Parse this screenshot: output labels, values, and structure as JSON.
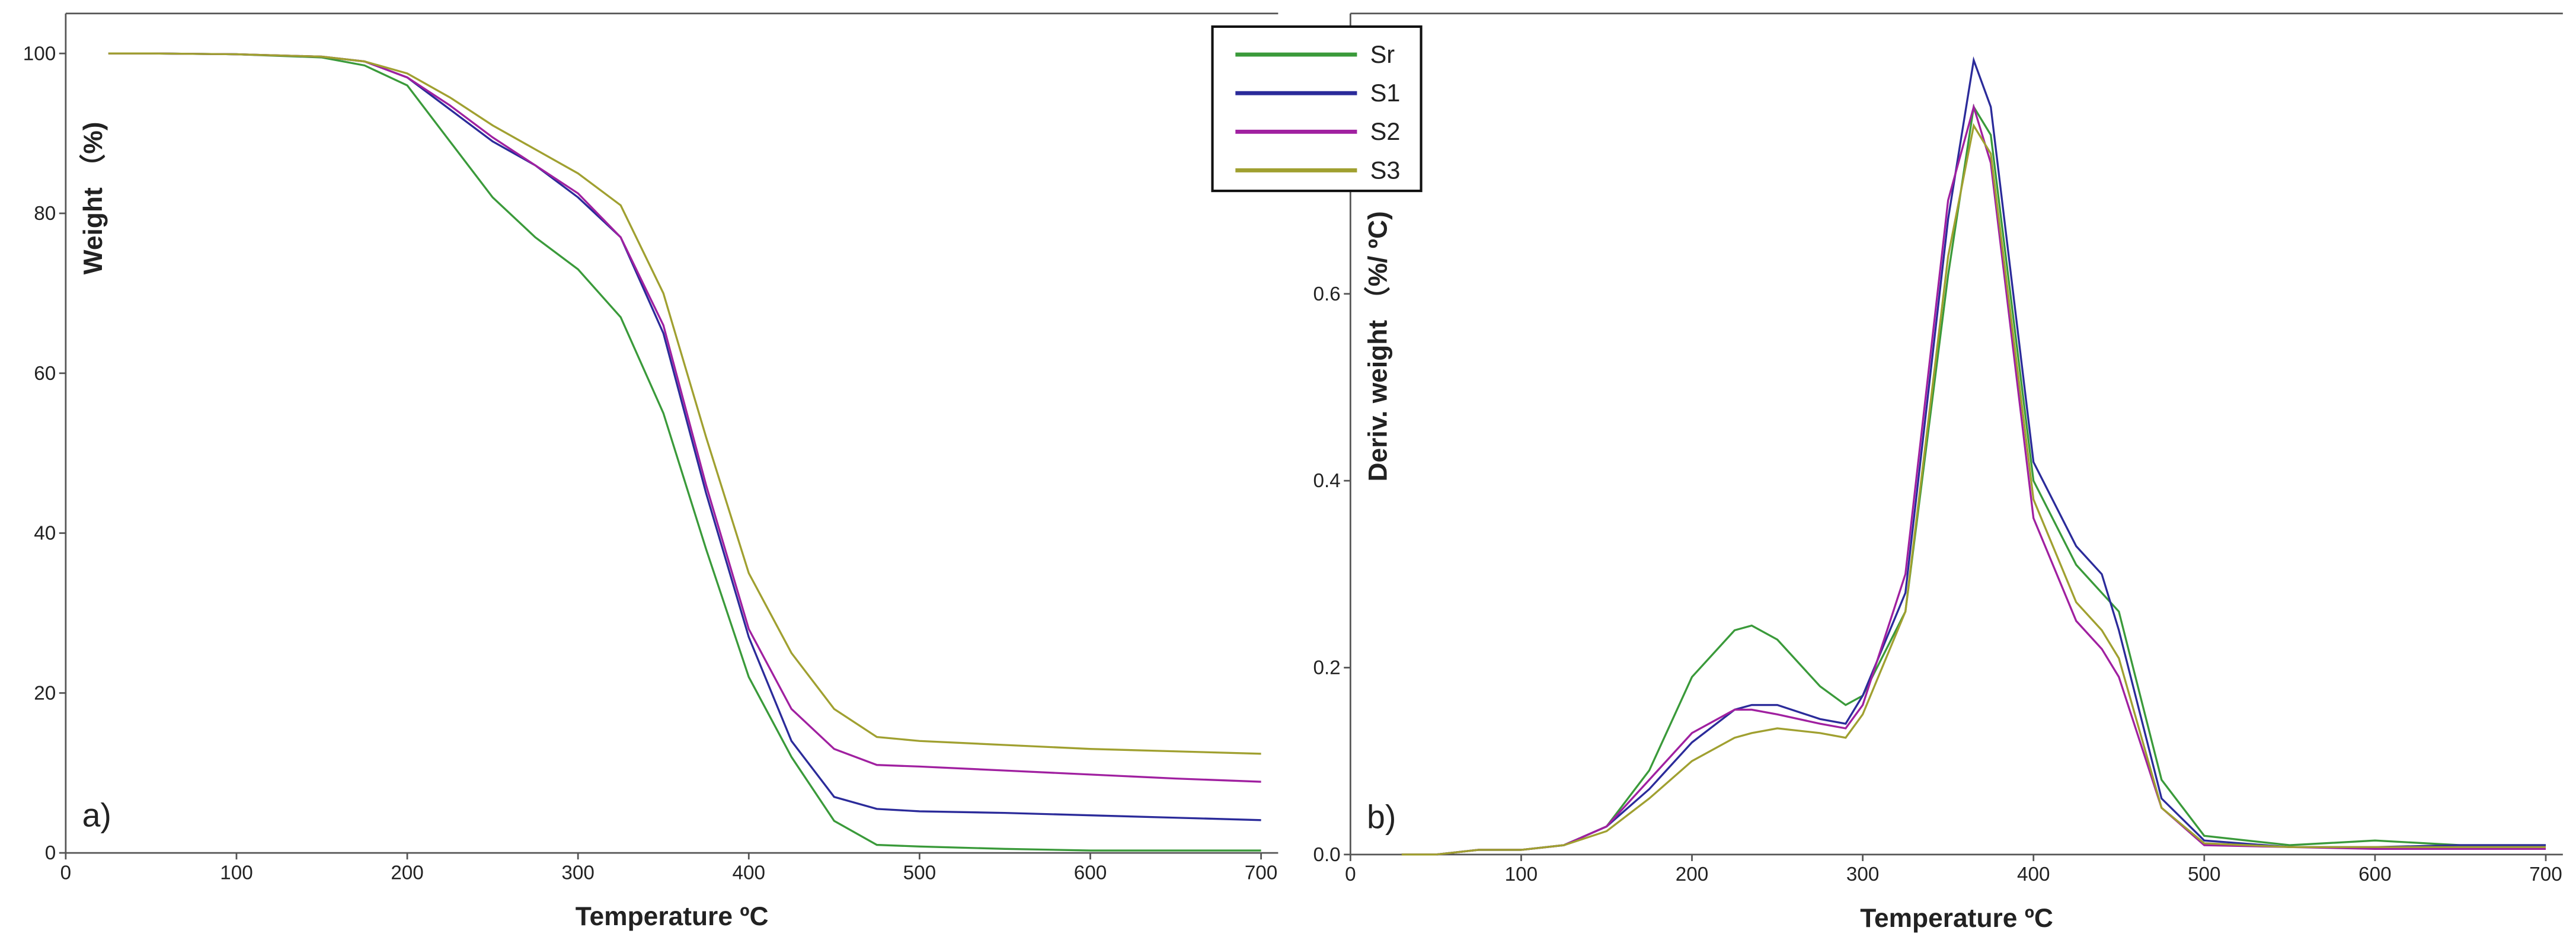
{
  "chart_data": [
    {
      "type": "line",
      "label": "a)",
      "xlabel": "Temperature ºC",
      "ylabel": "Weight （%)",
      "xlim": [
        0,
        710
      ],
      "ylim": [
        0,
        105
      ],
      "xticks": [
        0,
        100,
        200,
        300,
        400,
        500,
        600,
        700
      ],
      "yticks": [
        0,
        20,
        40,
        60,
        80,
        100
      ],
      "x": [
        25,
        50,
        100,
        150,
        175,
        200,
        225,
        250,
        275,
        300,
        325,
        350,
        375,
        400,
        425,
        450,
        475,
        500,
        550,
        600,
        650,
        700
      ],
      "series": [
        {
          "name": "Sr",
          "color": "#3a9a3a",
          "values": [
            100,
            100,
            99.9,
            99.5,
            98.5,
            96,
            89,
            82,
            77,
            73,
            67,
            55,
            38,
            22,
            12,
            4,
            1,
            0.8,
            0.5,
            0.3,
            0.3,
            0.3
          ]
        },
        {
          "name": "S1",
          "color": "#2b2b9a",
          "values": [
            100,
            100,
            99.9,
            99.6,
            99,
            97,
            93,
            89,
            86,
            82,
            77,
            65,
            45,
            27,
            14,
            7,
            5.5,
            5.2,
            5,
            4.7,
            4.4,
            4.1
          ]
        },
        {
          "name": "S2",
          "color": "#a020a0",
          "values": [
            100,
            100,
            99.9,
            99.6,
            99,
            97,
            93.5,
            89.5,
            86,
            82.5,
            77,
            66,
            46,
            28,
            18,
            13,
            11,
            10.8,
            10.3,
            9.8,
            9.3,
            8.9
          ]
        },
        {
          "name": "S3",
          "color": "#a0a030",
          "values": [
            100,
            100,
            99.9,
            99.6,
            99,
            97.5,
            94.5,
            91,
            88,
            85,
            81,
            70,
            52,
            35,
            25,
            18,
            14.5,
            14,
            13.5,
            13,
            12.7,
            12.4
          ]
        }
      ]
    },
    {
      "type": "line",
      "label": "b)",
      "xlabel": "Temperature ºC",
      "ylabel": "Deriv. weight （%/ ºC)",
      "xlim": [
        0,
        710
      ],
      "ylim": [
        0,
        0.9
      ],
      "xticks": [
        0,
        100,
        200,
        300,
        400,
        500,
        600,
        700
      ],
      "yticks": [
        {
          "value": 0,
          "label": "0.0"
        },
        0.2,
        0.4,
        0.6
      ],
      "x": [
        30,
        50,
        75,
        100,
        125,
        150,
        175,
        200,
        225,
        235,
        250,
        275,
        290,
        300,
        325,
        350,
        365,
        375,
        400,
        425,
        440,
        450,
        475,
        500,
        550,
        600,
        650,
        700
      ],
      "series": [
        {
          "name": "Sr",
          "color": "#3a9a3a",
          "values": [
            0,
            0,
            0.005,
            0.005,
            0.01,
            0.03,
            0.09,
            0.19,
            0.24,
            0.245,
            0.23,
            0.18,
            0.16,
            0.17,
            0.26,
            0.62,
            0.8,
            0.77,
            0.4,
            0.31,
            0.28,
            0.26,
            0.08,
            0.02,
            0.01,
            0.015,
            0.01,
            0.01
          ]
        },
        {
          "name": "S1",
          "color": "#2b2b9a",
          "values": [
            0,
            0,
            0.005,
            0.005,
            0.01,
            0.03,
            0.07,
            0.12,
            0.155,
            0.16,
            0.16,
            0.145,
            0.14,
            0.17,
            0.28,
            0.68,
            0.85,
            0.8,
            0.42,
            0.33,
            0.3,
            0.24,
            0.06,
            0.015,
            0.008,
            0.008,
            0.01,
            0.01
          ]
        },
        {
          "name": "S2",
          "color": "#a020a0",
          "values": [
            0,
            0,
            0.005,
            0.005,
            0.01,
            0.03,
            0.08,
            0.13,
            0.155,
            0.155,
            0.15,
            0.14,
            0.135,
            0.16,
            0.3,
            0.7,
            0.8,
            0.74,
            0.36,
            0.25,
            0.22,
            0.19,
            0.05,
            0.01,
            0.008,
            0.006,
            0.006,
            0.006
          ]
        },
        {
          "name": "S3",
          "color": "#a0a030",
          "values": [
            0,
            0,
            0.005,
            0.005,
            0.01,
            0.025,
            0.06,
            0.1,
            0.125,
            0.13,
            0.135,
            0.13,
            0.125,
            0.15,
            0.26,
            0.64,
            0.78,
            0.75,
            0.38,
            0.27,
            0.24,
            0.21,
            0.05,
            0.012,
            0.008,
            0.008,
            0.008,
            0.008
          ]
        }
      ]
    }
  ]
}
